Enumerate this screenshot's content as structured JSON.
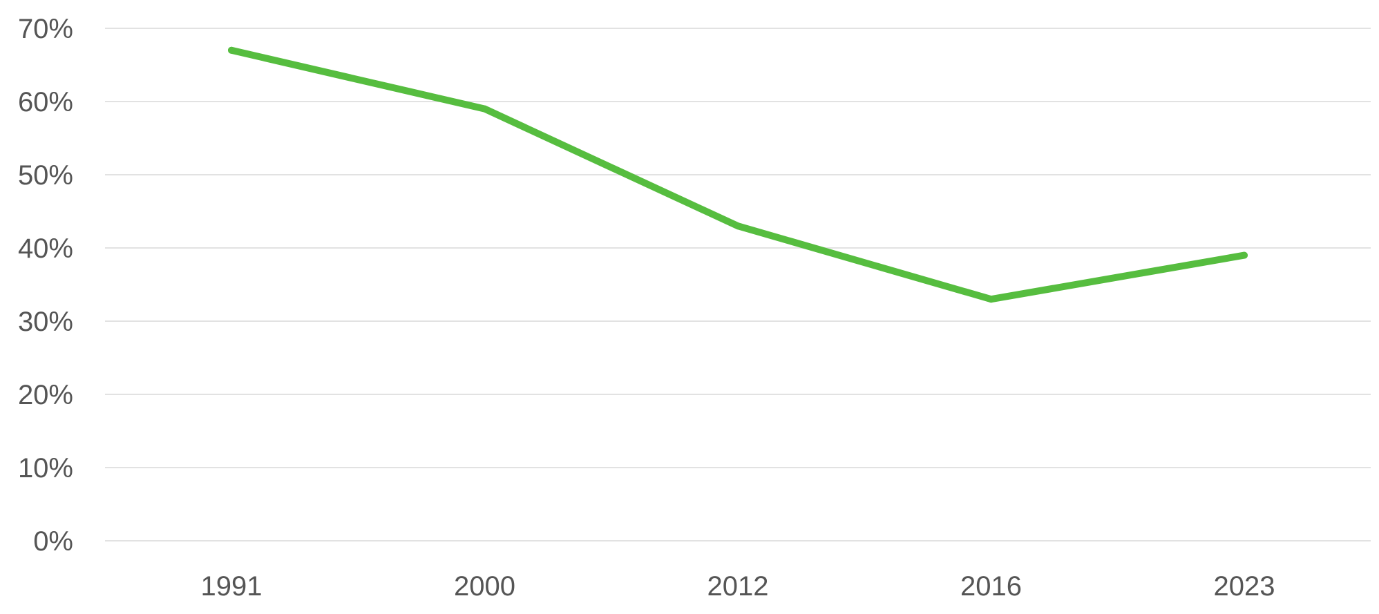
{
  "chart_data": {
    "type": "line",
    "title": "",
    "xlabel": "",
    "ylabel": "",
    "categories": [
      "1991",
      "2000",
      "2012",
      "2016",
      "2023"
    ],
    "series": [
      {
        "values": [
          67,
          59,
          43,
          33,
          39
        ],
        "color": "#56bd3f"
      }
    ],
    "ylim": [
      0,
      70
    ],
    "yticks": [
      0,
      10,
      20,
      30,
      40,
      50,
      60,
      70
    ],
    "ytick_labels": [
      "0%",
      "10%",
      "20%",
      "30%",
      "40%",
      "50%",
      "60%",
      "70%"
    ],
    "grid": true,
    "legend": "none"
  }
}
